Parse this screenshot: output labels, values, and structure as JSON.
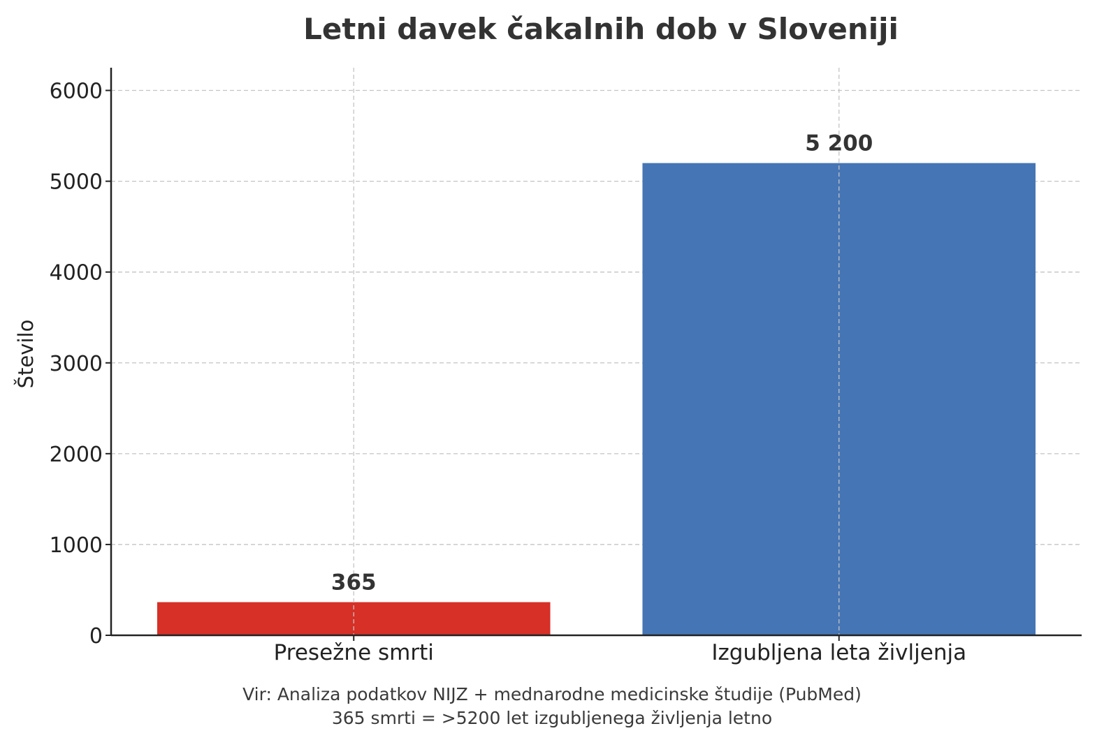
{
  "chart_data": {
    "type": "bar",
    "title": "Letni davek čakalnih dob v Sloveniji",
    "xlabel": "",
    "ylabel": "Število",
    "categories": [
      "Presežne smrti",
      "Izgubljena leta življenja"
    ],
    "values": [
      365,
      5200
    ],
    "value_labels": [
      "365",
      "5 200"
    ],
    "colors": [
      "#d63027",
      "#4575b4"
    ],
    "ylim": [
      0,
      6250
    ],
    "yticks": [
      0,
      1000,
      2000,
      3000,
      4000,
      5000,
      6000
    ],
    "grid": true
  },
  "footer": {
    "source": "Vir: Analiza podatkov NIJZ + mednarodne medicinske študije (PubMed)",
    "note": "365 smrti = >5200 let izgubljenega življenja letno"
  }
}
